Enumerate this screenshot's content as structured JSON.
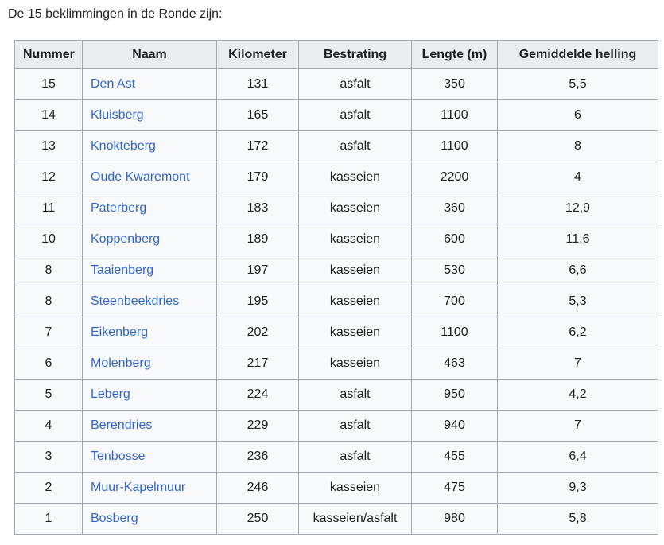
{
  "intro": "De 15 beklimmingen in de Ronde zijn:",
  "colors": {
    "link": "#3366cc",
    "header_bg": "#eaecf0",
    "cell_bg": "#f8f9fa",
    "border": "#a2a9b1",
    "text": "#202122"
  },
  "table": {
    "columns": [
      "Nummer",
      "Naam",
      "Kilometer",
      "Bestrating",
      "Lengte (m)",
      "Gemiddelde helling"
    ],
    "rows": [
      {
        "nummer": "15",
        "naam": "Den Ast",
        "kilometer": "131",
        "bestrating": "asfalt",
        "lengte": "350",
        "helling": "5,5"
      },
      {
        "nummer": "14",
        "naam": "Kluisberg",
        "kilometer": "165",
        "bestrating": "asfalt",
        "lengte": "1100",
        "helling": "6"
      },
      {
        "nummer": "13",
        "naam": "Knokteberg",
        "kilometer": "172",
        "bestrating": "asfalt",
        "lengte": "1100",
        "helling": "8"
      },
      {
        "nummer": "12",
        "naam": "Oude Kwaremont",
        "kilometer": "179",
        "bestrating": "kasseien",
        "lengte": "2200",
        "helling": "4"
      },
      {
        "nummer": "11",
        "naam": "Paterberg",
        "kilometer": "183",
        "bestrating": "kasseien",
        "lengte": "360",
        "helling": "12,9"
      },
      {
        "nummer": "10",
        "naam": "Koppenberg",
        "kilometer": "189",
        "bestrating": "kasseien",
        "lengte": "600",
        "helling": "11,6"
      },
      {
        "nummer": "8",
        "naam": "Taaienberg",
        "kilometer": "197",
        "bestrating": "kasseien",
        "lengte": "530",
        "helling": "6,6"
      },
      {
        "nummer": "8",
        "naam": "Steenbeekdries",
        "kilometer": "195",
        "bestrating": "kasseien",
        "lengte": "700",
        "helling": "5,3"
      },
      {
        "nummer": "7",
        "naam": "Eikenberg",
        "kilometer": "202",
        "bestrating": "kasseien",
        "lengte": "1100",
        "helling": "6,2"
      },
      {
        "nummer": "6",
        "naam": "Molenberg",
        "kilometer": "217",
        "bestrating": "kasseien",
        "lengte": "463",
        "helling": "7"
      },
      {
        "nummer": "5",
        "naam": "Leberg",
        "kilometer": "224",
        "bestrating": "asfalt",
        "lengte": "950",
        "helling": "4,2"
      },
      {
        "nummer": "4",
        "naam": "Berendries",
        "kilometer": "229",
        "bestrating": "asfalt",
        "lengte": "940",
        "helling": "7"
      },
      {
        "nummer": "3",
        "naam": "Tenbosse",
        "kilometer": "236",
        "bestrating": "asfalt",
        "lengte": "455",
        "helling": "6,4"
      },
      {
        "nummer": "2",
        "naam": "Muur-Kapelmuur",
        "kilometer": "246",
        "bestrating": "kasseien",
        "lengte": "475",
        "helling": "9,3"
      },
      {
        "nummer": "1",
        "naam": "Bosberg",
        "kilometer": "250",
        "bestrating": "kasseien/asfalt",
        "lengte": "980",
        "helling": "5,8"
      }
    ]
  }
}
